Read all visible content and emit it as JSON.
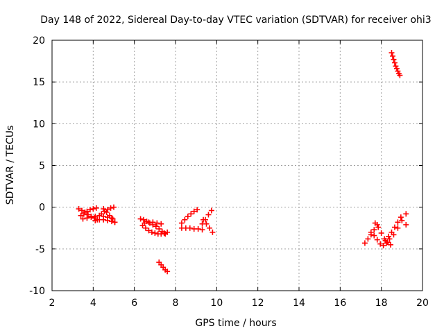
{
  "chart_data": {
    "type": "scatter",
    "title": "Day 148 of 2022, Sidereal Day-to-day VTEC variation (SDTVAR) for receiver ohi3",
    "xlabel": "GPS time / hours",
    "ylabel": "SDTVAR / TECUs",
    "xlim": [
      2,
      20
    ],
    "ylim": [
      -10,
      20
    ],
    "xticks": [
      2,
      4,
      6,
      8,
      10,
      12,
      14,
      16,
      18,
      20
    ],
    "yticks": [
      -10,
      -5,
      0,
      5,
      10,
      15,
      20
    ],
    "grid": true,
    "marker": "plus",
    "color": "#ff0000",
    "series": [
      {
        "name": "SDTVAR",
        "segments": [
          {
            "x": [
              3.3,
              3.45,
              3.6,
              3.75,
              3.9,
              4.05,
              4.2
            ],
            "y": [
              -0.2,
              -0.4,
              -0.6,
              -0.9,
              -1.1,
              -1.3,
              -1.5
            ]
          },
          {
            "x": [
              3.4,
              3.55,
              3.7,
              3.85,
              4.0,
              4.15
            ],
            "y": [
              -1.0,
              -0.8,
              -0.5,
              -0.3,
              -0.2,
              -0.1
            ]
          },
          {
            "x": [
              3.5,
              3.7,
              3.9,
              4.1,
              4.3,
              4.5,
              4.7,
              4.9
            ],
            "y": [
              -1.4,
              -1.3,
              -1.2,
              -1.1,
              -1.0,
              -1.1,
              -1.2,
              -1.3
            ]
          },
          {
            "x": [
              4.4,
              4.55,
              4.7,
              4.85,
              5.0
            ],
            "y": [
              -0.8,
              -0.5,
              -0.3,
              -0.1,
              0.0
            ]
          },
          {
            "x": [
              4.5,
              4.65,
              4.8,
              4.95,
              5.05
            ],
            "y": [
              -0.2,
              -0.6,
              -1.0,
              -1.4,
              -1.8
            ]
          },
          {
            "x": [
              4.1,
              4.3,
              4.5,
              4.7,
              4.9,
              5.05
            ],
            "y": [
              -1.6,
              -1.5,
              -1.5,
              -1.6,
              -1.7,
              -1.8
            ]
          },
          {
            "x": [
              6.3,
              6.45,
              6.6,
              6.75,
              6.9,
              7.05,
              7.2,
              7.35,
              7.5
            ],
            "y": [
              -1.4,
              -1.5,
              -1.7,
              -1.9,
              -2.1,
              -2.3,
              -2.6,
              -2.9,
              -3.2
            ]
          },
          {
            "x": [
              6.4,
              6.55,
              6.7,
              6.85,
              7.0,
              7.15,
              7.3,
              7.45,
              7.6
            ],
            "y": [
              -2.2,
              -2.5,
              -2.8,
              -3.0,
              -3.1,
              -3.2,
              -3.2,
              -3.1,
              -3.0
            ]
          },
          {
            "x": [
              6.5,
              6.7,
              6.9,
              7.1,
              7.3
            ],
            "y": [
              -1.9,
              -1.8,
              -1.8,
              -1.9,
              -2.0
            ]
          },
          {
            "x": [
              7.2,
              7.3,
              7.4,
              7.5,
              7.6
            ],
            "y": [
              -6.6,
              -6.9,
              -7.2,
              -7.5,
              -7.7
            ]
          },
          {
            "x": [
              8.3,
              8.45,
              8.6,
              8.75,
              8.9,
              9.05
            ],
            "y": [
              -1.9,
              -1.5,
              -1.1,
              -0.8,
              -0.5,
              -0.3
            ]
          },
          {
            "x": [
              8.3,
              8.5,
              8.7,
              8.9,
              9.1,
              9.3
            ],
            "y": [
              -2.5,
              -2.5,
              -2.5,
              -2.6,
              -2.6,
              -2.7
            ]
          },
          {
            "x": [
              9.3,
              9.45,
              9.6,
              9.75
            ],
            "y": [
              -2.0,
              -1.5,
              -0.9,
              -0.4
            ]
          },
          {
            "x": [
              9.35,
              9.5,
              9.65,
              9.8
            ],
            "y": [
              -1.5,
              -2.0,
              -2.5,
              -3.0
            ]
          },
          {
            "x": [
              17.2,
              17.35,
              17.5,
              17.65,
              17.8
            ],
            "y": [
              -4.3,
              -3.8,
              -3.3,
              -2.7,
              -2.1
            ]
          },
          {
            "x": [
              17.7,
              17.85,
              18.0,
              18.15,
              18.3,
              18.45
            ],
            "y": [
              -1.9,
              -2.4,
              -3.1,
              -3.8,
              -4.2,
              -4.5
            ]
          },
          {
            "x": [
              17.5,
              17.65,
              17.8,
              17.95,
              18.1,
              18.25
            ],
            "y": [
              -3.0,
              -3.4,
              -3.9,
              -4.4,
              -4.6,
              -4.3
            ]
          },
          {
            "x": [
              18.2,
              18.35,
              18.5,
              18.65,
              18.8,
              18.95
            ],
            "y": [
              -4.0,
              -3.5,
              -3.0,
              -2.4,
              -1.8,
              -1.2
            ]
          },
          {
            "x": [
              18.4,
              18.6,
              18.8,
              19.0,
              19.2
            ],
            "y": [
              -3.8,
              -3.3,
              -2.5,
              -1.6,
              -0.8
            ]
          },
          {
            "x": [
              19.2
            ],
            "y": [
              -2.1
            ]
          },
          {
            "x": [
              18.5,
              18.55,
              18.6,
              18.65,
              18.7,
              18.75,
              18.8,
              18.85,
              18.9
            ],
            "y": [
              18.5,
              18.1,
              17.7,
              17.3,
              16.9,
              16.6,
              16.3,
              16.0,
              15.8
            ]
          }
        ]
      }
    ]
  }
}
